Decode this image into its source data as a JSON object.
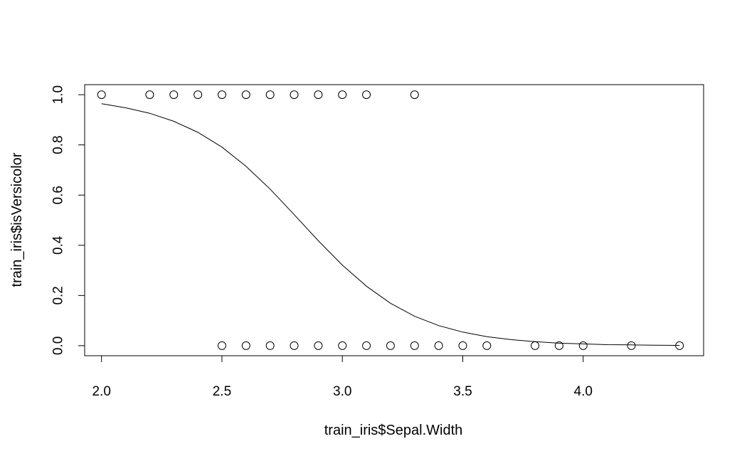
{
  "chart_data": {
    "type": "scatter",
    "title": "",
    "xlabel": "train_iris$Sepal.Width",
    "ylabel": "train_iris$isVersicolor",
    "xlim": [
      1.93,
      4.5
    ],
    "ylim": [
      -0.04,
      1.04
    ],
    "x_ticks": [
      2.0,
      2.5,
      3.0,
      3.5,
      4.0
    ],
    "x_tick_labels": [
      "2.0",
      "2.5",
      "3.0",
      "3.5",
      "4.0"
    ],
    "y_ticks": [
      0.0,
      0.2,
      0.4,
      0.6,
      0.8,
      1.0
    ],
    "y_tick_labels": [
      "0.0",
      "0.2",
      "0.4",
      "0.6",
      "0.8",
      "1.0"
    ],
    "grid": false,
    "legend": "none",
    "series": [
      {
        "type": "scatter",
        "marker": "open-circle",
        "points": [
          [
            2.0,
            1
          ],
          [
            2.2,
            1
          ],
          [
            2.3,
            1
          ],
          [
            2.4,
            1
          ],
          [
            2.5,
            1
          ],
          [
            2.6,
            1
          ],
          [
            2.7,
            1
          ],
          [
            2.8,
            1
          ],
          [
            2.9,
            1
          ],
          [
            3.0,
            1
          ],
          [
            3.1,
            1
          ],
          [
            3.3,
            1
          ],
          [
            2.5,
            0
          ],
          [
            2.6,
            0
          ],
          [
            2.7,
            0
          ],
          [
            2.8,
            0
          ],
          [
            2.9,
            0
          ],
          [
            3.0,
            0
          ],
          [
            3.1,
            0
          ],
          [
            3.2,
            0
          ],
          [
            3.3,
            0
          ],
          [
            3.4,
            0
          ],
          [
            3.5,
            0
          ],
          [
            3.6,
            0
          ],
          [
            3.8,
            0
          ],
          [
            3.9,
            0
          ],
          [
            4.0,
            0
          ],
          [
            4.2,
            0
          ],
          [
            4.4,
            0
          ]
        ]
      },
      {
        "type": "line",
        "curve": "logistic-fit",
        "x": [
          2.0,
          2.1,
          2.2,
          2.3,
          2.4,
          2.5,
          2.6,
          2.7,
          2.8,
          2.9,
          3.0,
          3.1,
          3.2,
          3.3,
          3.4,
          3.5,
          3.6,
          3.7,
          3.8,
          3.9,
          4.0,
          4.1,
          4.2,
          4.3,
          4.4
        ],
        "y": [
          0.964,
          0.948,
          0.926,
          0.894,
          0.85,
          0.791,
          0.715,
          0.624,
          0.522,
          0.418,
          0.321,
          0.237,
          0.169,
          0.117,
          0.08,
          0.054,
          0.036,
          0.024,
          0.016,
          0.01,
          0.007,
          0.004,
          0.003,
          0.002,
          0.001
        ]
      }
    ]
  }
}
